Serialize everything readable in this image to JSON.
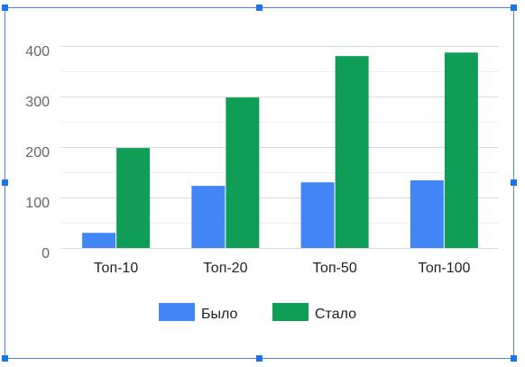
{
  "editor": {
    "selection_color": "#1a73e8",
    "frame_color": "#4a86e8"
  },
  "chart_data": {
    "type": "bar",
    "title": "",
    "xlabel": "",
    "ylabel": "",
    "categories": [
      "Топ-10",
      "Топ-20",
      "Топ-50",
      "Топ-100"
    ],
    "series": [
      {
        "name": "Было",
        "color": "#4285f4",
        "values": [
          30,
          123,
          130,
          134
        ]
      },
      {
        "name": "Стало",
        "color": "#0f9d58",
        "values": [
          198,
          298,
          380,
          387
        ]
      }
    ],
    "ylim": [
      0,
      400
    ],
    "yticks": [
      0,
      100,
      200,
      300,
      400
    ],
    "grid": true,
    "legend_position": "bottom"
  }
}
